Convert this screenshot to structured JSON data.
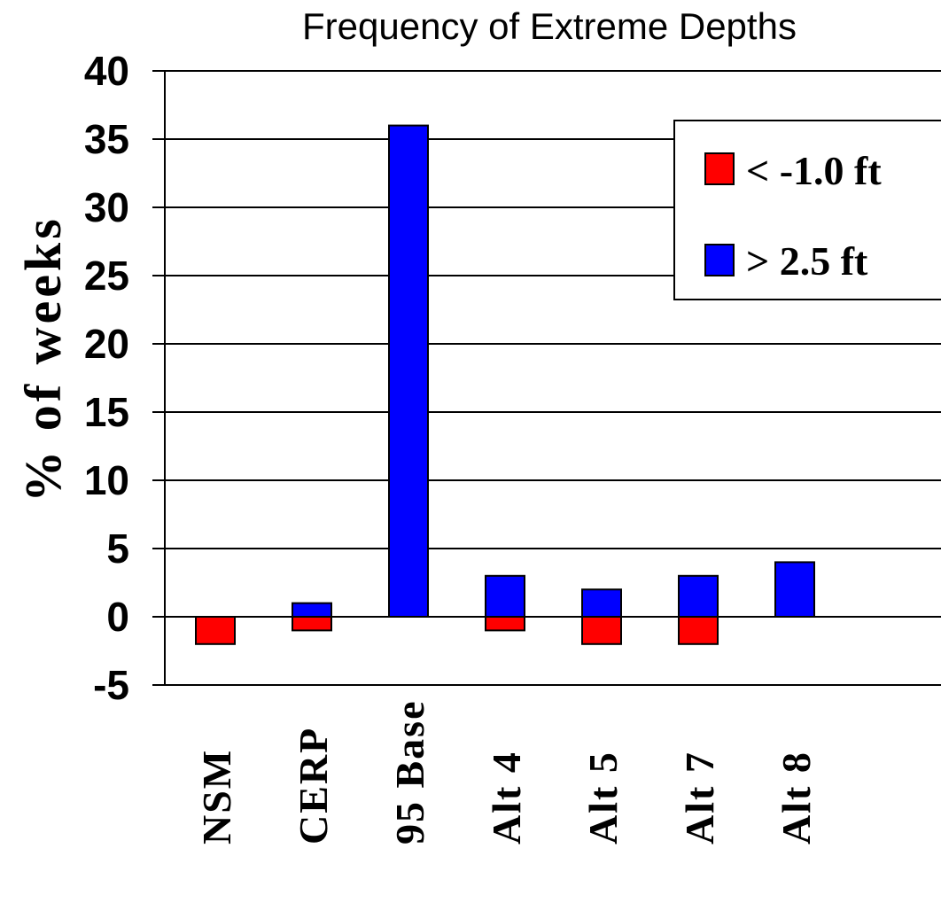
{
  "chart_data": {
    "type": "bar",
    "title": "Frequency of Extreme Depths",
    "xlabel": "",
    "ylabel": "% of weeks",
    "ylim": [
      -5,
      40
    ],
    "yticks": [
      -5,
      0,
      5,
      10,
      15,
      20,
      25,
      30,
      35,
      40
    ],
    "categories": [
      "NSM",
      "CERP",
      "95 Base",
      "Alt 4",
      "Alt 5",
      "Alt 7",
      "Alt 8"
    ],
    "series": [
      {
        "name": "< -1.0 ft",
        "color": "#ff0000",
        "values": [
          -2,
          -1,
          0,
          -1,
          -2,
          -2,
          0
        ]
      },
      {
        "name": "> 2.5 ft",
        "color": "#0000ff",
        "values": [
          0,
          1,
          36,
          3,
          2,
          3,
          4
        ]
      }
    ],
    "grid": true,
    "legend_position": "top-right"
  }
}
